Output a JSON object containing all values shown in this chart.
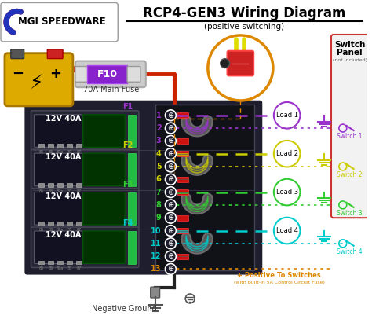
{
  "title": "RCP4-GEN3 Wiring Diagram",
  "subtitle": "(positive switching)",
  "bg_color": "#ffffff",
  "logo_text": "MGI SPEEDWARE",
  "fuse_label": "F10",
  "fuse_caption": "70A Main Fuse",
  "negative_ground": "Negative Ground",
  "positive_switches": "+ Positive To Switches",
  "positive_switches_sub": "(with built-in 5A Control Circuit Fuse)",
  "relay_labels": [
    "F1",
    "F2",
    "F3",
    "F4"
  ],
  "relay_label": "12V 40A",
  "loads": [
    "Load 1",
    "Load 2",
    "Load 3",
    "Load 4"
  ],
  "switches": [
    "Switch 1",
    "Switch 2",
    "Switch 3",
    "Switch 4"
  ],
  "switch_panel_title": "Switch\nPanel",
  "switch_panel_sub": "(not included)",
  "wire_colors": [
    "#9933cc",
    "#cccc00",
    "#33cc33",
    "#00cccc"
  ],
  "wire_colors_light": [
    "#cc66ff",
    "#eeee44",
    "#66ff66",
    "#44eeee"
  ],
  "orange_wire": "#dd8800",
  "red_wire": "#cc2200",
  "black_wire": "#222222",
  "terminal_nums": [
    "1",
    "2",
    "3",
    "4",
    "5",
    "6",
    "7",
    "8",
    "9",
    "10",
    "11",
    "12",
    "13"
  ],
  "enclosure_bg": "#1a1a2e",
  "enclosure_border": "#ffffff",
  "relay_bg": "#2a2a3a",
  "relay_green": "#22aa44",
  "switch_panel_bg": "#f5f5f5",
  "switch_panel_border": "#cc3333"
}
